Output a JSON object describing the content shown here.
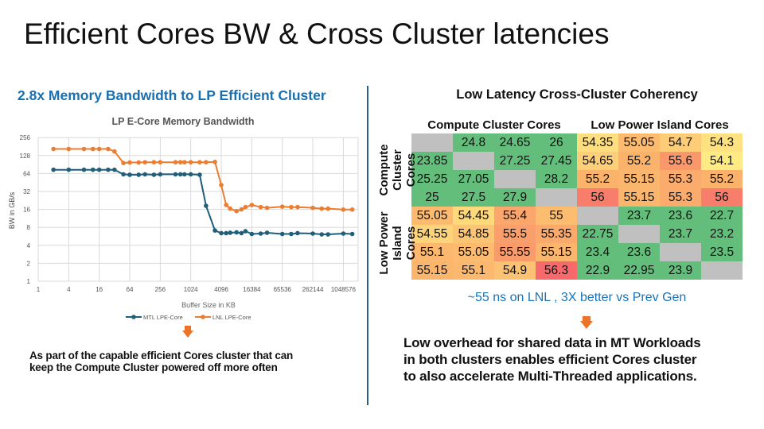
{
  "slide": {
    "title": "Efficient Cores BW & Cross Cluster latencies",
    "left": {
      "heading": "2.8x Memory Bandwidth to LP Efficient Cluster",
      "text_lines": [
        "As part of the capable efficient Cores cluster that can",
        "keep the Compute Cluster powered off more often"
      ]
    },
    "right": {
      "heading": "Low Latency Cross-Cluster Coherency",
      "col_groups": [
        "Compute Cluster Cores",
        "Low Power Island Cores"
      ],
      "row_groups": [
        "Compute Cluster Cores",
        "Low Power Island Cores"
      ],
      "row_group_lines": [
        [
          "Compute",
          "Cluster",
          "Cores"
        ],
        [
          "Low Power",
          "Island",
          "Cores"
        ]
      ],
      "caption": "~55 ns on LNL , 3X better vs Prev Gen",
      "text_lines": [
        "Low overhead for shared data in MT Workloads",
        "in both clusters enables efficient Cores cluster",
        "to also accelerate Multi-Threaded applications."
      ]
    },
    "colors": {
      "accent_blue": "#1a6fb0",
      "arrow": "#ec7428",
      "mtl": "#1f5f7a",
      "lnl": "#ec7c30",
      "heat_low": "#63be7b",
      "heat_mid": "#ffeb84",
      "heat_high": "#f8696b",
      "diagonal": "#c0c0c0"
    }
  },
  "chart_data": [
    {
      "type": "line",
      "title": "LP E-Core Memory Bandwidth",
      "xlabel": "Buffer Size in KB",
      "ylabel": "BW in GB/s",
      "xscale": "log2",
      "yscale": "log2",
      "xlim": [
        1,
        2097152
      ],
      "ylim": [
        1,
        256
      ],
      "xticks": [
        "1",
        "4",
        "16",
        "64",
        "256",
        "1024",
        "4096",
        "16384",
        "65536",
        "262144",
        "1048576"
      ],
      "yticks": [
        "1",
        "2",
        "4",
        "8",
        "16",
        "32",
        "64",
        "128",
        "256"
      ],
      "grid": true,
      "legend": "bottom",
      "x": [
        2,
        4,
        8,
        12,
        16,
        24,
        32,
        48,
        64,
        96,
        128,
        192,
        256,
        512,
        640,
        768,
        1024,
        1536,
        2048,
        3072,
        4096,
        5120,
        6144,
        8192,
        10240,
        12288,
        16384,
        24576,
        32768,
        65536,
        98304,
        131072,
        262144,
        393216,
        524288,
        1048576,
        1572864
      ],
      "series": [
        {
          "name": "MTL LPE-Core",
          "color": "#1f5f7a",
          "values": [
            74,
            74,
            74,
            74,
            74,
            74,
            74,
            62,
            61,
            61,
            62,
            61,
            62,
            62,
            62,
            62,
            62,
            61,
            18.4,
            7.1,
            6.4,
            6.4,
            6.5,
            6.6,
            6.4,
            6.9,
            6.2,
            6.3,
            6.5,
            6.2,
            6.2,
            6.4,
            6.3,
            6.1,
            6.1,
            6.3,
            6.2
          ]
        },
        {
          "name": "LNL LPE-Core",
          "color": "#ec7c30",
          "values": [
            165,
            165,
            165,
            165,
            165,
            165,
            150,
            96,
            98,
            98,
            99,
            99,
            99,
            99,
            99,
            99,
            99,
            99,
            99,
            100,
            41,
            19,
            16.5,
            15,
            16,
            17.5,
            19,
            17.5,
            17,
            17.8,
            17.5,
            17.5,
            17,
            16.5,
            16.5,
            15.9,
            15.9
          ]
        }
      ]
    },
    {
      "type": "heatmap",
      "title": "Low Latency Cross-Cluster Coherency",
      "values": [
        [
          null,
          24.8,
          24.65,
          26,
          54.35,
          55.05,
          54.7,
          54.3
        ],
        [
          23.85,
          null,
          27.25,
          27.45,
          54.65,
          55.2,
          55.6,
          54.1
        ],
        [
          25.25,
          27.05,
          null,
          28.2,
          55.2,
          55.15,
          55.3,
          55.2
        ],
        [
          25,
          27.5,
          27.9,
          null,
          56,
          55.15,
          55.3,
          56
        ],
        [
          55.05,
          54.45,
          55.4,
          55,
          null,
          23.7,
          23.6,
          22.7
        ],
        [
          54.55,
          54.85,
          55.5,
          55.35,
          22.75,
          null,
          23.7,
          23.2
        ],
        [
          55.1,
          55.05,
          55.55,
          55.15,
          23.4,
          23.6,
          null,
          23.5
        ],
        [
          55.15,
          55.1,
          54.9,
          56.3,
          22.9,
          22.95,
          23.9,
          null
        ]
      ]
    }
  ]
}
